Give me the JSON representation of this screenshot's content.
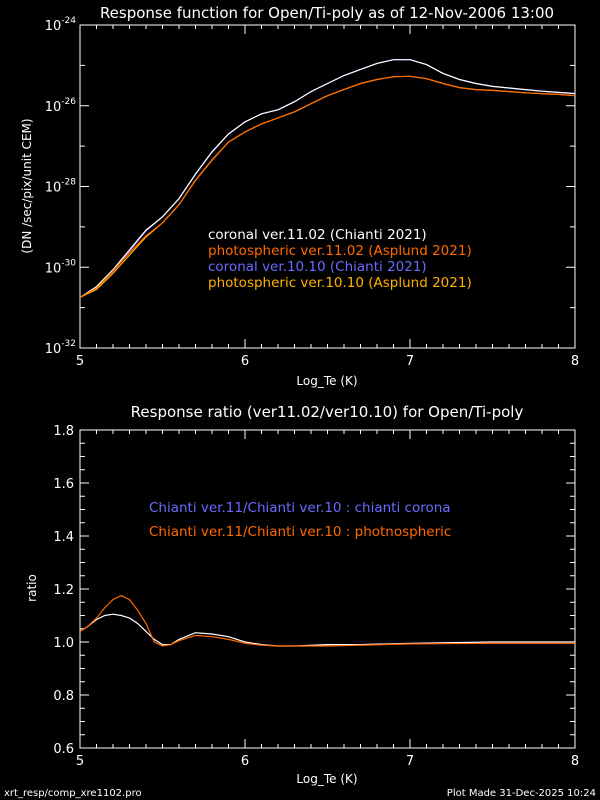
{
  "chart_data": [
    {
      "type": "line",
      "title": "Response function for Open/Ti-poly as of 12-Nov-2006 13:00",
      "xlabel": "Log_Te (K)",
      "ylabel": "(DN /sec/pix/unit CEM)",
      "yscale": "log",
      "xlim": [
        5,
        8
      ],
      "ylim_log10": [
        -32,
        -24
      ],
      "xticks": [
        "5",
        "6",
        "7",
        "8"
      ],
      "yticks": [
        {
          "base": "10",
          "exp": "-24",
          "v": -24
        },
        {
          "base": "10",
          "exp": "-26",
          "v": -26
        },
        {
          "base": "10",
          "exp": "-28",
          "v": -28
        },
        {
          "base": "10",
          "exp": "-30",
          "v": -30
        },
        {
          "base": "10",
          "exp": "-32",
          "v": -32
        }
      ],
      "x": [
        5.0,
        5.1,
        5.2,
        5.3,
        5.4,
        5.5,
        5.6,
        5.7,
        5.8,
        5.9,
        6.0,
        6.1,
        6.2,
        6.3,
        6.4,
        6.5,
        6.6,
        6.7,
        6.8,
        6.9,
        7.0,
        7.1,
        7.2,
        7.3,
        7.4,
        7.5,
        7.6,
        7.7,
        7.8,
        7.9,
        8.0
      ],
      "series": [
        {
          "name": "coronal ver.10.10 (Chianti 2021)",
          "color": "#6a6aff",
          "log10_values": [
            -30.75,
            -30.5,
            -30.1,
            -29.6,
            -29.1,
            -28.75,
            -28.3,
            -27.7,
            -27.15,
            -26.7,
            -26.4,
            -26.2,
            -26.1,
            -25.9,
            -25.65,
            -25.45,
            -25.25,
            -25.1,
            -24.95,
            -24.86,
            -24.86,
            -24.98,
            -25.2,
            -25.35,
            -25.45,
            -25.52,
            -25.56,
            -25.6,
            -25.64,
            -25.67,
            -25.7
          ]
        },
        {
          "name": "photospheric ver.10.10 (Asplund 2021)",
          "color": "#ffb000",
          "log10_values": [
            -30.75,
            -30.55,
            -30.15,
            -29.7,
            -29.25,
            -28.9,
            -28.45,
            -27.85,
            -27.35,
            -26.9,
            -26.65,
            -26.45,
            -26.3,
            -26.15,
            -25.95,
            -25.75,
            -25.6,
            -25.45,
            -25.35,
            -25.28,
            -25.27,
            -25.33,
            -25.45,
            -25.55,
            -25.6,
            -25.62,
            -25.65,
            -25.68,
            -25.7,
            -25.72,
            -25.75
          ]
        },
        {
          "name": "coronal ver.11.02 (Chianti 2021)",
          "color": "#ffffff",
          "log10_values": [
            -30.75,
            -30.48,
            -30.06,
            -29.57,
            -29.08,
            -28.75,
            -28.3,
            -27.69,
            -27.14,
            -26.7,
            -26.4,
            -26.2,
            -26.1,
            -25.9,
            -25.65,
            -25.45,
            -25.25,
            -25.1,
            -24.95,
            -24.86,
            -24.86,
            -24.98,
            -25.2,
            -25.35,
            -25.45,
            -25.52,
            -25.56,
            -25.6,
            -25.64,
            -25.67,
            -25.7
          ]
        },
        {
          "name": "photospheric ver.11.02 (Asplund 2021)",
          "color": "#ff6a00",
          "log10_values": [
            -30.75,
            -30.52,
            -30.09,
            -29.64,
            -29.22,
            -28.9,
            -28.45,
            -27.84,
            -27.34,
            -26.9,
            -26.65,
            -26.45,
            -26.3,
            -26.15,
            -25.95,
            -25.75,
            -25.6,
            -25.45,
            -25.35,
            -25.28,
            -25.27,
            -25.33,
            -25.45,
            -25.55,
            -25.6,
            -25.62,
            -25.65,
            -25.68,
            -25.7,
            -25.72,
            -25.75
          ]
        }
      ],
      "legend_order": [
        2,
        3,
        0,
        1
      ],
      "legend_placement": "center-right"
    },
    {
      "type": "line",
      "title": "Response ratio (ver11.02/ver10.10) for Open/Ti-poly",
      "xlabel": "Log_Te (K)",
      "ylabel": "ratio",
      "xlim": [
        5,
        8
      ],
      "ylim": [
        0.6,
        1.8
      ],
      "xticks": [
        "5",
        "6",
        "7",
        "8"
      ],
      "yticks": [
        "0.6",
        "0.8",
        "1.0",
        "1.2",
        "1.4",
        "1.6",
        "1.8"
      ],
      "x": [
        5.0,
        5.05,
        5.1,
        5.15,
        5.2,
        5.25,
        5.3,
        5.35,
        5.4,
        5.45,
        5.5,
        5.55,
        5.6,
        5.7,
        5.8,
        5.9,
        6.0,
        6.1,
        6.2,
        6.3,
        6.5,
        6.7,
        7.0,
        7.5,
        8.0
      ],
      "series": [
        {
          "name": "Chianti ver.11/Chianti ver.10 : chianti corona",
          "color": "#ffffff",
          "legend_color": "#6a6aff",
          "values": [
            1.04,
            1.06,
            1.085,
            1.1,
            1.105,
            1.1,
            1.09,
            1.07,
            1.04,
            1.01,
            0.99,
            0.99,
            1.01,
            1.035,
            1.03,
            1.02,
            1.0,
            0.99,
            0.985,
            0.985,
            0.99,
            0.99,
            0.995,
            1.0,
            1.0
          ]
        },
        {
          "name": "Chianti ver.11/Chianti ver.10 : photnospheric",
          "color": "#ff6a00",
          "legend_color": "#ff6a00",
          "values": [
            1.04,
            1.06,
            1.09,
            1.13,
            1.16,
            1.175,
            1.16,
            1.12,
            1.07,
            1.0,
            0.985,
            0.99,
            1.005,
            1.025,
            1.02,
            1.01,
            0.995,
            0.988,
            0.985,
            0.985,
            0.985,
            0.988,
            0.993,
            0.995,
            0.995
          ]
        }
      ],
      "legend_placement": "center"
    }
  ],
  "footer": {
    "left": "xrt_resp/comp_xre1102.pro",
    "right": "Plot Made 31-Dec-2025 10:24"
  }
}
